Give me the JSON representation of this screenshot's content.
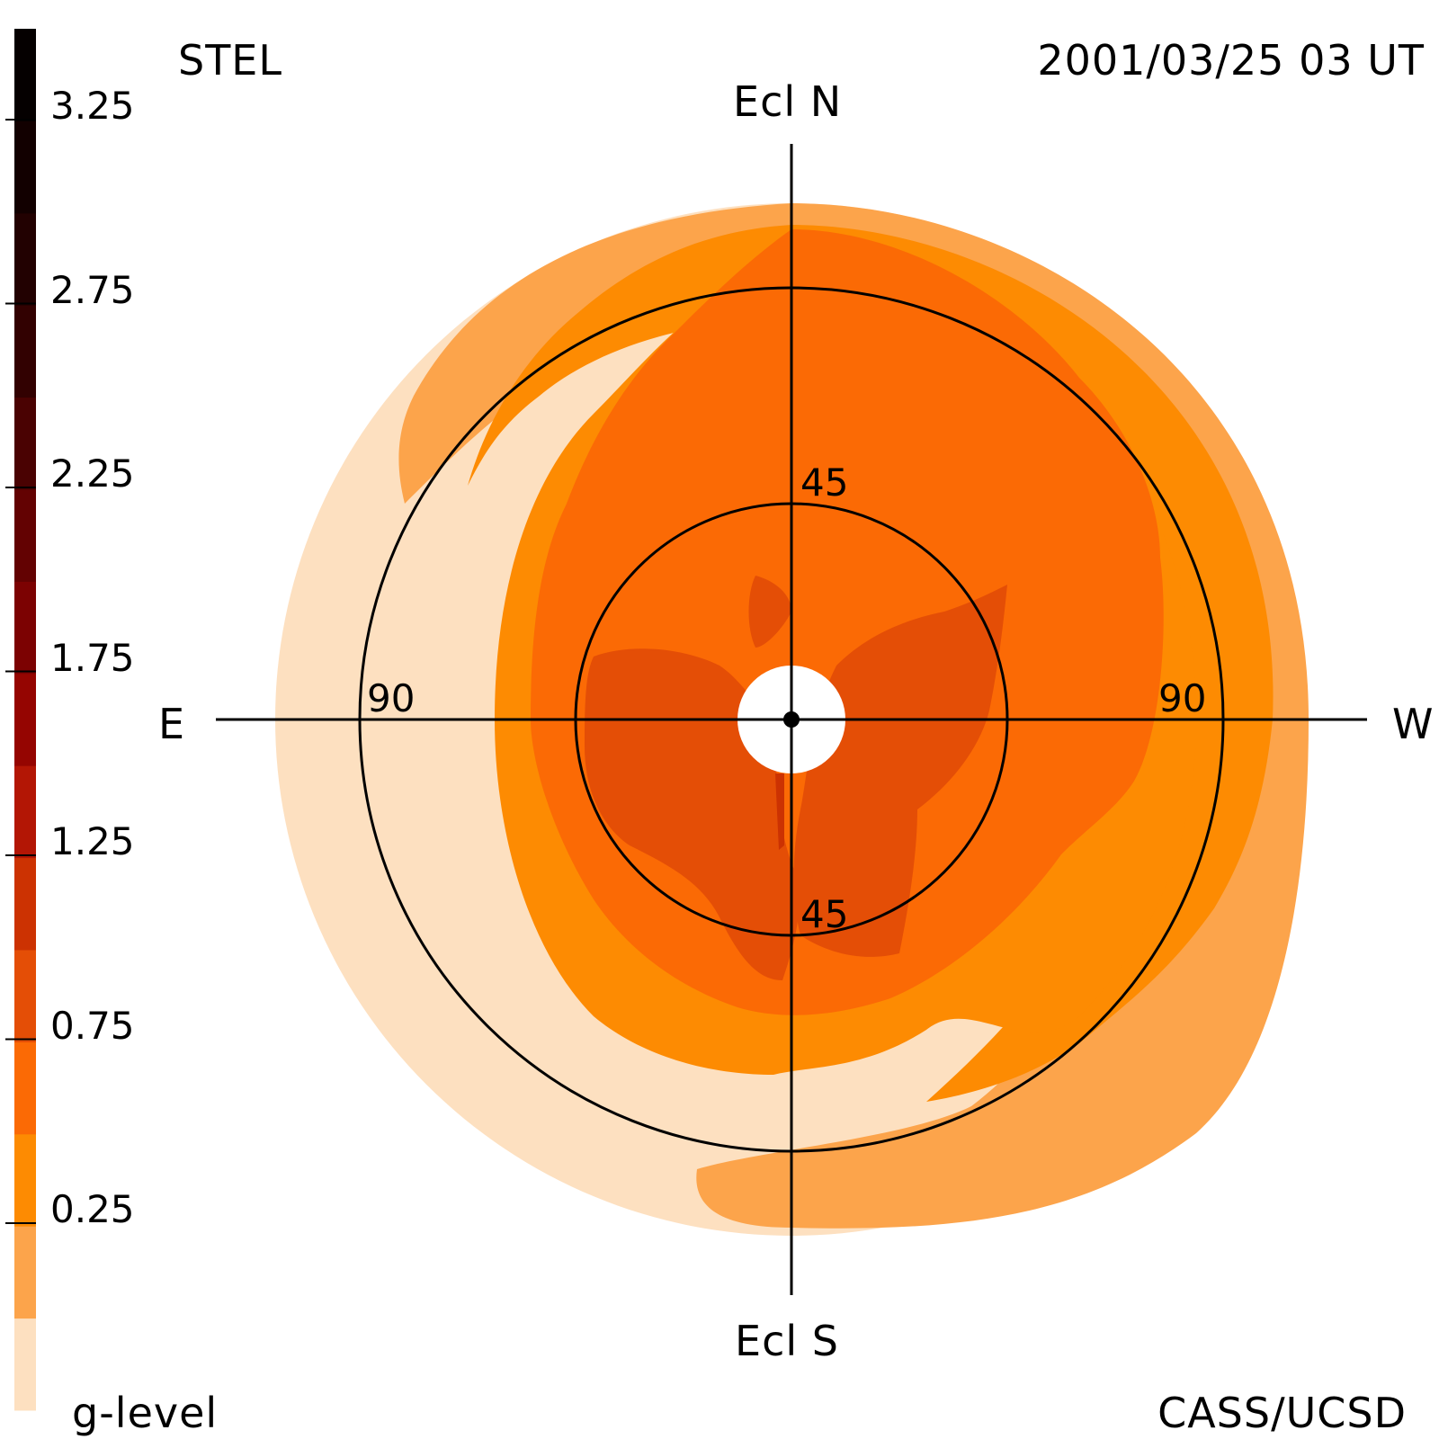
{
  "header": {
    "observatory": "STEL",
    "datetime": "2001/03/25 03 UT"
  },
  "footer": {
    "colorbar_label": "g-level",
    "credit": "CASS/UCSD"
  },
  "directions": {
    "north": "Ecl N",
    "south": "Ecl S",
    "east": "E",
    "west": "W"
  },
  "elongation_labels": {
    "inner_top": "45",
    "inner_bottom": "45",
    "outer_left": "90",
    "outer_right": "90"
  },
  "colorbar": {
    "tick_labels": [
      "3.25",
      "2.75",
      "2.25",
      "1.75",
      "1.25",
      "0.75",
      "0.25"
    ],
    "bins": [
      {
        "color": "#fde0c0"
      },
      {
        "color": "#fca44b"
      },
      {
        "color": "#fd8b02"
      },
      {
        "color": "#fb6a05"
      },
      {
        "color": "#e44e06"
      },
      {
        "color": "#cc3202"
      },
      {
        "color": "#b31605"
      },
      {
        "color": "#950501"
      },
      {
        "color": "#7c0202"
      },
      {
        "color": "#630202"
      },
      {
        "color": "#4a0202"
      },
      {
        "color": "#320101"
      },
      {
        "color": "#220101"
      },
      {
        "color": "#120000"
      },
      {
        "color": "#050000"
      }
    ]
  },
  "map_colors": {
    "outer_pale": "#fde0c0",
    "light_orange": "#fca44b",
    "orange": "#fd8b02",
    "dark_orange": "#fb6a05",
    "red_orange": "#e44e06",
    "deep_red": "#cc3202"
  }
}
